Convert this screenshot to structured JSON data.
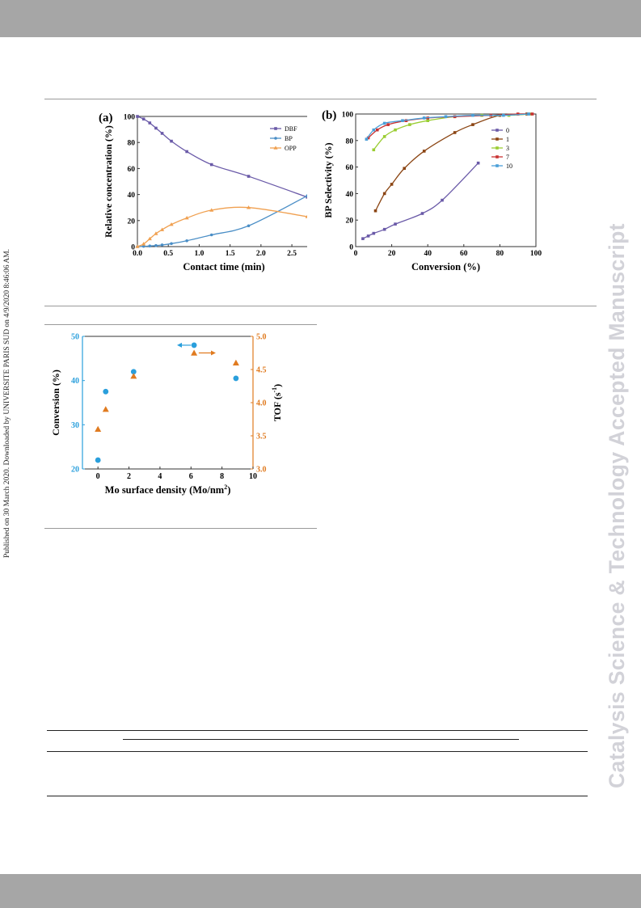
{
  "side_note": "Published on 30 March 2020. Downloaded by UNIVERSITE PARIS SUD on 4/9/2020 8:46:06 AM.",
  "watermark": "Catalysis Science & Technology Accepted Manuscript",
  "chart_data": [
    {
      "type": "line",
      "panel_label": "(a)",
      "xlabel": "Contact time (min)",
      "ylabel": "Relative concentration (%)",
      "xlim": [
        0,
        2.8
      ],
      "ylim": [
        0,
        100
      ],
      "xticks": [
        "0.0",
        "0.5",
        "1.0",
        "1.5",
        "2.0",
        "2.5"
      ],
      "yticks": [
        "0",
        "20",
        "40",
        "60",
        "80",
        "100"
      ],
      "legend_position": "top-right",
      "series": [
        {
          "name": "DBF",
          "color": "#6a5aa8",
          "marker": "square",
          "x": [
            0,
            0.1,
            0.2,
            0.3,
            0.4,
            0.55,
            0.8,
            1.2,
            1.8,
            2.75
          ],
          "y": [
            100,
            98,
            95,
            91,
            87,
            81,
            73,
            63,
            54,
            38
          ]
        },
        {
          "name": "BP",
          "color": "#4a8ec6",
          "marker": "circle",
          "x": [
            0,
            0.1,
            0.2,
            0.3,
            0.4,
            0.55,
            0.8,
            1.2,
            1.8,
            2.75
          ],
          "y": [
            0,
            0.2,
            0.5,
            0.8,
            1.3,
            2.3,
            4.5,
            9,
            16,
            39
          ]
        },
        {
          "name": "OPP",
          "color": "#f0a050",
          "marker": "triangle",
          "x": [
            0,
            0.1,
            0.2,
            0.3,
            0.4,
            0.55,
            0.8,
            1.2,
            1.8,
            2.75
          ],
          "y": [
            0,
            2,
            6,
            10,
            13,
            17,
            22,
            28,
            30,
            23
          ]
        }
      ]
    },
    {
      "type": "line",
      "panel_label": "(b)",
      "xlabel": "Conversion (%)",
      "ylabel": "BP Selectivity (%)",
      "xlim": [
        0,
        100
      ],
      "ylim": [
        0,
        100
      ],
      "xticks": [
        "0",
        "20",
        "40",
        "60",
        "80",
        "100"
      ],
      "yticks": [
        "0",
        "20",
        "40",
        "60",
        "80",
        "100"
      ],
      "legend_position": "right",
      "series": [
        {
          "name": "0",
          "color": "#6a5aa8",
          "x": [
            4,
            7,
            10,
            16,
            22,
            37,
            48,
            68
          ],
          "y": [
            6,
            8,
            10,
            13,
            17,
            25,
            35,
            63
          ]
        },
        {
          "name": "1",
          "color": "#8b4513",
          "x": [
            11,
            16,
            20,
            27,
            38,
            55,
            65,
            80,
            95
          ],
          "y": [
            27,
            40,
            47,
            59,
            72,
            86,
            92,
            99,
            100
          ]
        },
        {
          "name": "3",
          "color": "#9acd32",
          "x": [
            10,
            16,
            22,
            30,
            40,
            55,
            70,
            85,
            97
          ],
          "y": [
            73,
            83,
            88,
            92,
            95,
            98,
            99,
            99,
            100
          ]
        },
        {
          "name": "7",
          "color": "#c83232",
          "x": [
            7,
            12,
            18,
            28,
            40,
            55,
            75,
            90,
            98
          ],
          "y": [
            82,
            88,
            92,
            95,
            97,
            98,
            99,
            100,
            100
          ]
        },
        {
          "name": "10",
          "color": "#4a9fd8",
          "x": [
            6,
            10,
            16,
            26,
            38,
            50,
            65,
            82,
            96
          ],
          "y": [
            81,
            88,
            93,
            95,
            97,
            98,
            99,
            99,
            100
          ]
        }
      ]
    },
    {
      "type": "scatter",
      "xlabel": "Mo surface density (Mo/nm",
      "xlabel_sup": "2",
      "xlabel_suffix": ")",
      "ylabel_left": "Conversion (%)",
      "ylabel_right": "TOF (s",
      "ylabel_right_sup": "-1",
      "ylabel_right_suffix": ")",
      "xlim": [
        -1,
        10
      ],
      "ylim_left": [
        20,
        50
      ],
      "ylim_right": [
        3.0,
        5.0
      ],
      "xticks": [
        "0",
        "2",
        "4",
        "6",
        "8",
        "10"
      ],
      "yticks_left": [
        "20",
        "30",
        "40",
        "50"
      ],
      "yticks_right": [
        "3.0",
        "3.5",
        "4.0",
        "4.5",
        "5.0"
      ],
      "series": [
        {
          "name": "Conversion",
          "axis": "left",
          "color": "#2a9fdc",
          "marker": "circle",
          "x": [
            0,
            0.5,
            2.3,
            6.2,
            8.9
          ],
          "y": [
            22,
            37.5,
            42,
            48,
            40.5
          ]
        },
        {
          "name": "TOF",
          "axis": "right",
          "color": "#e07b20",
          "marker": "triangle",
          "x": [
            0,
            0.5,
            2.3,
            6.2,
            8.9
          ],
          "y": [
            3.6,
            3.9,
            4.4,
            4.75,
            4.6
          ]
        }
      ]
    }
  ]
}
